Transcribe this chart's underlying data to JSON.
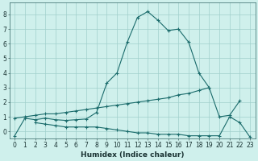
{
  "xlabel": "Humidex (Indice chaleur)",
  "x_values": [
    0,
    1,
    2,
    3,
    4,
    5,
    6,
    7,
    8,
    9,
    10,
    11,
    12,
    13,
    14,
    15,
    16,
    17,
    18,
    19,
    20,
    21,
    22,
    23
  ],
  "line1": [
    -0.3,
    0.9,
    0.8,
    0.9,
    0.8,
    0.75,
    0.8,
    0.85,
    1.3,
    3.3,
    4.0,
    6.1,
    7.8,
    8.2,
    7.6,
    6.9,
    7.0,
    6.1,
    4.0,
    3.0,
    1.0,
    1.1,
    2.1,
    null
  ],
  "line2": [
    0.9,
    1.0,
    1.1,
    1.2,
    1.2,
    1.3,
    1.4,
    1.5,
    1.6,
    1.7,
    1.8,
    1.9,
    2.0,
    2.1,
    2.2,
    2.3,
    2.5,
    2.6,
    2.8,
    3.0,
    null,
    null,
    null,
    null
  ],
  "line3": [
    null,
    null,
    0.6,
    0.5,
    0.4,
    0.3,
    0.3,
    0.3,
    0.3,
    0.2,
    0.1,
    0.0,
    -0.1,
    -0.1,
    -0.2,
    -0.2,
    -0.2,
    -0.3,
    -0.3,
    -0.3,
    -0.3,
    1.0,
    0.6,
    -0.4
  ],
  "line_color": "#1a6b6b",
  "marker": "+",
  "marker_size": 3,
  "linewidth": 0.8,
  "bg_color": "#cff0ec",
  "grid_color": "#a0d0cc",
  "ylim": [
    -0.5,
    8.8
  ],
  "xlim": [
    -0.5,
    23.5
  ],
  "yticks": [
    0,
    1,
    2,
    3,
    4,
    5,
    6,
    7,
    8
  ],
  "xticks": [
    0,
    1,
    2,
    3,
    4,
    5,
    6,
    7,
    8,
    9,
    10,
    11,
    12,
    13,
    14,
    15,
    16,
    17,
    18,
    19,
    20,
    21,
    22,
    23
  ],
  "tick_fontsize": 5.5,
  "xlabel_fontsize": 6.5
}
